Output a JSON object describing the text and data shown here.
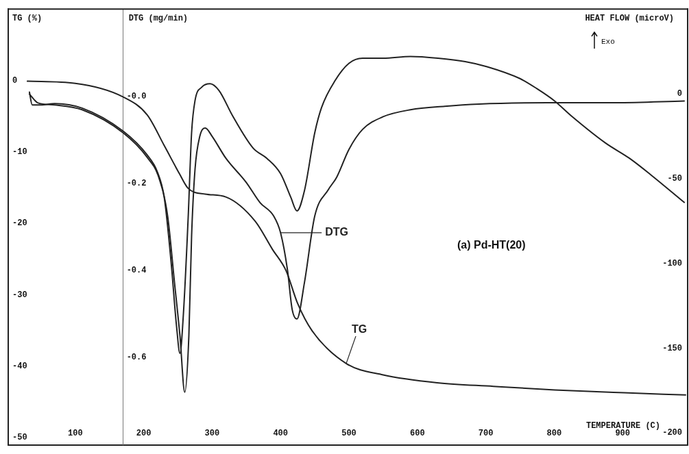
{
  "chart_data": {
    "type": "line",
    "xlabel": "TEMPERATURE (C)",
    "ylabel": "TG (%)",
    "y2label": "DTG (mg/min)",
    "y3label": "HEAT FLOW (microV)",
    "xlim": [
      2,
      995
    ],
    "xticks": [
      100,
      200,
      300,
      400,
      500,
      600,
      700,
      800,
      900
    ],
    "ylim": [
      -51,
      10
    ],
    "yticks": [
      -50,
      -40,
      -30,
      -20,
      -10,
      0
    ],
    "y2lim": [
      -0.8,
      0.2
    ],
    "y2ticks": [
      {
        "value": -0.6,
        "label": "-0.6"
      },
      {
        "value": -0.4,
        "label": "-0.4"
      },
      {
        "value": -0.2,
        "label": "-0.2"
      },
      {
        "value": 0,
        "label": "-0.0"
      }
    ],
    "y3lim": [
      -207,
      50
    ],
    "y3ticks": [
      -200,
      -150,
      -100,
      -50,
      0
    ],
    "grid": false,
    "marker": "none",
    "line_style": "solid",
    "annotations": [
      "(a) Pd-HT(20)",
      "Exo"
    ],
    "series": [
      {
        "name": "TG",
        "color": "#222222",
        "x": [
          30,
          100,
          170,
          205,
          230,
          252,
          265,
          290,
          320,
          363,
          388,
          408,
          425,
          446,
          496,
          550,
          629,
          711,
          801,
          902,
          992
        ],
        "values": [
          -0.1,
          -0.4,
          -2.3,
          -4.8,
          -9.1,
          -13.0,
          -15.1,
          -15.9,
          -16.3,
          -19.7,
          -23.6,
          -26.6,
          -31.2,
          -35.0,
          -39.6,
          -41.2,
          -42.3,
          -42.8,
          -43.3,
          -43.7,
          -44.0
        ]
      },
      {
        "name": "DTG",
        "axis": "y2",
        "color": "#222222",
        "x": [
          33,
          40,
          45,
          70,
          110,
          170,
          205,
          222,
          235,
          245,
          253,
          260,
          266,
          270,
          275,
          282,
          290,
          300,
          320,
          350,
          370,
          390,
          400,
          410,
          417,
          424,
          435,
          450,
          470,
          482,
          500,
          520,
          550,
          590,
          640,
          690,
          790,
          890,
          990
        ],
        "values": [
          0.005,
          -0.008,
          -0.015,
          -0.02,
          -0.031,
          -0.084,
          -0.14,
          -0.186,
          -0.275,
          -0.427,
          -0.55,
          -0.679,
          -0.55,
          -0.321,
          -0.168,
          -0.092,
          -0.073,
          -0.092,
          -0.142,
          -0.198,
          -0.244,
          -0.275,
          -0.313,
          -0.397,
          -0.489,
          -0.511,
          -0.427,
          -0.275,
          -0.214,
          -0.186,
          -0.122,
          -0.076,
          -0.047,
          -0.031,
          -0.023,
          -0.018,
          -0.015,
          -0.015,
          -0.011
        ]
      },
      {
        "axis": "y3",
        "color": "#222222",
        "x": [
          33,
          37,
          50,
          70,
          110,
          170,
          205,
          220,
          230,
          240,
          248,
          253,
          258,
          265,
          270,
          275,
          285,
          297,
          310,
          330,
          360,
          380,
          400,
          415,
          424,
          435,
          450,
          460,
          480,
          500,
          520,
          550,
          590,
          630,
          670,
          702,
          750,
          775,
          800,
          825,
          875,
          910,
          942,
          990
        ],
        "values": [
          1,
          -6.5,
          -6.5,
          -5.7,
          -8.4,
          -22,
          -36,
          -46,
          -61,
          -99,
          -137,
          -153,
          -130,
          -73,
          -23,
          -4,
          4,
          6,
          2,
          -13,
          -32,
          -38,
          -47,
          -61,
          -69,
          -57,
          -23,
          -8,
          8,
          18,
          21,
          21,
          22,
          21,
          19,
          16,
          9,
          3,
          -4,
          -13,
          -29,
          -38,
          -48,
          -64
        ]
      }
    ]
  }
}
